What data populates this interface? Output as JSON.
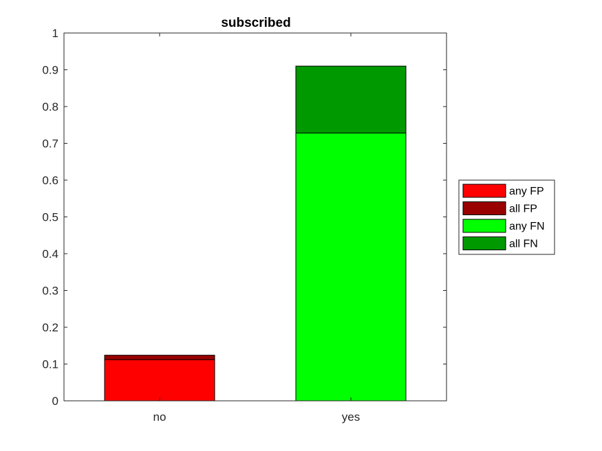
{
  "chart_data": {
    "type": "bar",
    "stacked": true,
    "title": "subscribed",
    "xlabel": "",
    "ylabel": "",
    "categories": [
      "no",
      "yes"
    ],
    "ylim": [
      0,
      1
    ],
    "yticks": [
      "0",
      "0.1",
      "0.2",
      "0.3",
      "0.4",
      "0.5",
      "0.6",
      "0.7",
      "0.8",
      "0.9",
      "1"
    ],
    "grid": false,
    "legend_position": "outside-right",
    "series": [
      {
        "name": "any FP",
        "color": "#ff0000",
        "values": [
          0.112,
          0
        ]
      },
      {
        "name": "all FP",
        "color": "#990000",
        "values": [
          0.012,
          0
        ]
      },
      {
        "name": "any FN",
        "color": "#00ff00",
        "values": [
          0,
          0.728
        ]
      },
      {
        "name": "all FN",
        "color": "#009900",
        "values": [
          0,
          0.182
        ]
      }
    ]
  }
}
